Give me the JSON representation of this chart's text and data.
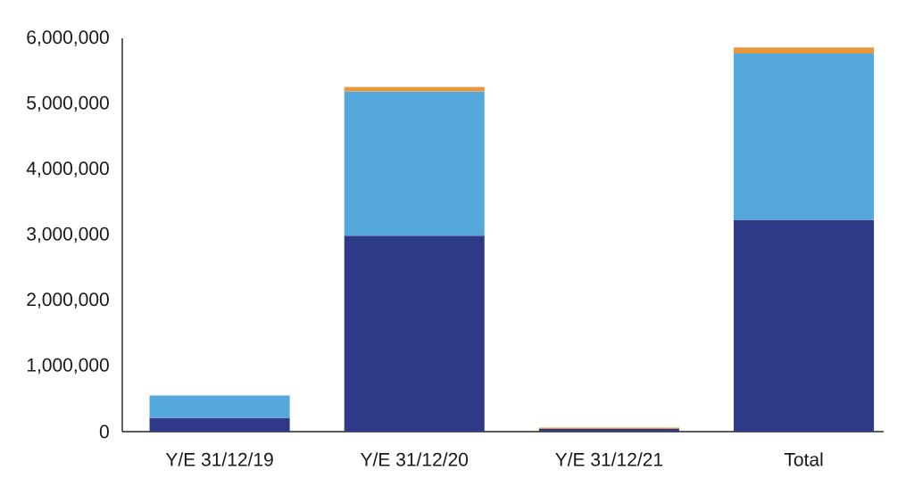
{
  "chart_data": {
    "type": "bar",
    "stacked": true,
    "categories": [
      "Y/E 31/12/19",
      "Y/E 31/12/20",
      "Y/E 31/12/21",
      "Total"
    ],
    "series": [
      {
        "color": "#2e3a87",
        "values": [
          210000,
          2990000,
          40000,
          3230000
        ]
      },
      {
        "color": "#55a8dc",
        "values": [
          340000,
          2200000,
          null,
          2540000
        ]
      },
      {
        "color": "#e8973c",
        "values": [
          null,
          70000,
          20000,
          90000
        ]
      }
    ],
    "ylim": [
      0,
      6000000
    ],
    "yticks": [
      0,
      {
        "value": 1000000,
        "label": "1,000,000"
      },
      {
        "value": 2000000,
        "label": "2,000,000"
      },
      {
        "value": 3000000,
        "label": "3,000,000"
      },
      {
        "value": 4000000,
        "label": "4,000,000"
      },
      {
        "value": 5000000,
        "label": "5,000,000"
      },
      {
        "value": 6000000,
        "label": "6,000,000"
      }
    ]
  }
}
